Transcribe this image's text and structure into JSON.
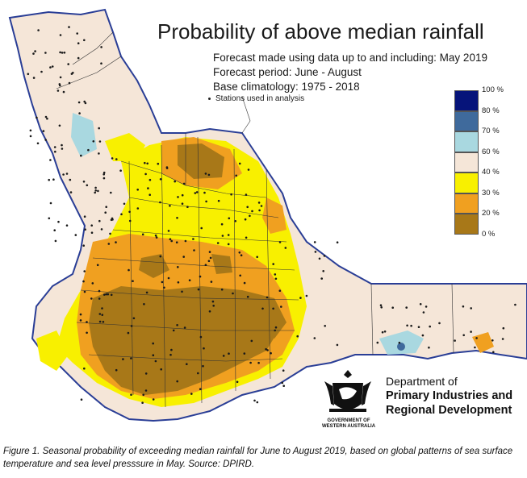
{
  "map": {
    "title": "Probability of above median rainfall",
    "subtitle_lines": [
      "Forecast made using data up to and including: May 2019",
      "Forecast period: June - August",
      "Base climatology: 1975 - 2018"
    ],
    "stations_note": "Stations used in analysis",
    "colors": {
      "ocean": "#ffffff",
      "coast": "#2a3e96",
      "boundary": "#333333",
      "pct_0_20": "#a87818",
      "pct_20_30": "#f0a020",
      "pct_30_40": "#f8f000",
      "pct_40_60": "#f5e6d8",
      "pct_60_70": "#a9d8e0",
      "pct_70_80": "#3f6a9c",
      "pct_80_100": "#06147a"
    }
  },
  "legend": {
    "tick_labels": [
      "100 %",
      "80 %",
      "70 %",
      "60 %",
      "40 %",
      "30 %",
      "20 %",
      "0 %"
    ],
    "swatch_colors": [
      "#06147a",
      "#3f6a9c",
      "#a9d8e0",
      "#f5e6d8",
      "#f8f000",
      "#f0a020",
      "#a87818"
    ]
  },
  "logo": {
    "caption": "GOVERNMENT OF WESTERN AUSTRALIA",
    "department_lines": [
      "Department of",
      "Primary Industries and",
      "Regional Development"
    ]
  },
  "caption": "Figure 1. Seasonal probability of exceeding median rainfall for June to August 2019, based on global patterns of sea surface temperature and sea level presssure in May. Source: DPIRD."
}
